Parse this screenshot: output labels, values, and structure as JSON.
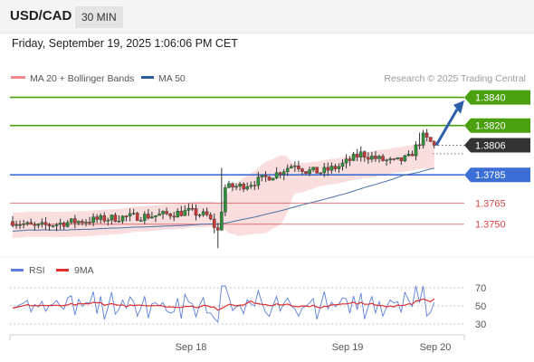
{
  "header": {
    "symbol": "USD/CAD",
    "timeframe": "30 MIN",
    "datetime": "Friday, September 19, 2025 1:06:06 PM CET"
  },
  "legend": {
    "ma20": "MA 20 + Bollinger Bands",
    "ma50": "MA 50",
    "credit": "Research © 2025 Trading Central"
  },
  "colors": {
    "green": "#4aa00e",
    "blue": "#3b6fd6",
    "red": "#d94646",
    "dark": "#333333",
    "candle_up": "#2f8f3a",
    "candle_down": "#c83a3a",
    "band": "#f7cccc",
    "ma50": "#4a6fa8",
    "rsi": "#5b7fd8",
    "rsi_ma": "#e03030"
  },
  "chart_data": [
    {
      "type": "candlestick",
      "ylim": [
        1.3728,
        1.385
      ],
      "levels": [
        {
          "value": 1.384,
          "label": "1.3840",
          "role": "resistance-2"
        },
        {
          "value": 1.382,
          "label": "1.3820",
          "role": "resistance-1"
        },
        {
          "value": 1.3806,
          "label": "1.3806",
          "role": "last-price"
        },
        {
          "value": 1.3785,
          "label": "1.3785",
          "role": "pivot"
        },
        {
          "value": 1.3765,
          "label": "1.3765",
          "role": "support-1"
        },
        {
          "value": 1.375,
          "label": "1.3750",
          "role": "support-2"
        }
      ],
      "x_ticks": [
        "Sep 18",
        "Sep 19",
        "Sep 20"
      ],
      "key_points": [
        {
          "label": "start",
          "close": 1.3752
        },
        {
          "label": "Sep 18 spike low",
          "low": 1.3733
        },
        {
          "label": "Sep 18 recovery",
          "close": 1.379
        },
        {
          "label": "Sep 19 high",
          "high": 1.3815
        },
        {
          "label": "last",
          "close": 1.3806
        }
      ]
    },
    {
      "type": "line",
      "name": "RSI",
      "ma_name": "9MA",
      "ylim": [
        20,
        80
      ],
      "y_ticks": [
        70,
        50,
        30
      ],
      "last_rsi": 54,
      "last_ma": 58
    }
  ]
}
